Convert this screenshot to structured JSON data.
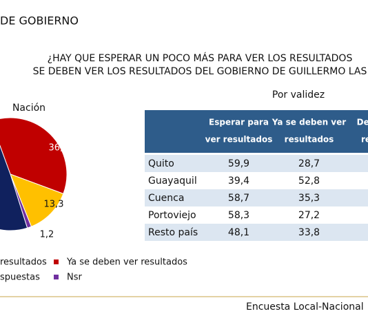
{
  "header": {
    "title": "DE GOBIERNO",
    "question_line1": "¿HAY QUE ESPERAR UN POCO MÁS PARA VER LOS RESULTADOS",
    "question_line2": "SE DEBEN VER LOS RESULTADOS DEL GOBIERNO DE GUILLERMO LAS"
  },
  "chart_data": {
    "type": "pie",
    "title": "Nación",
    "categories": [
      "resultados",
      "Ya se deben ver resultados",
      "spuestas",
      "Nsr"
    ],
    "values": [
      49.3,
      36.2,
      13.3,
      1.2
    ],
    "value_labels": [
      null,
      "36,2",
      "13,3",
      "1,2"
    ],
    "colors": [
      "#10215e",
      "#c00000",
      "#ffc000",
      "#7030a0"
    ]
  },
  "table": {
    "title": "Por validez",
    "header": [
      [
        "Esperar para",
        "ver resultados"
      ],
      [
        "Ya se deben ver",
        "resultados"
      ],
      [
        "Dep",
        "re"
      ]
    ],
    "rows": [
      [
        "Quito",
        "59,9",
        "28,7"
      ],
      [
        "Guayaquil",
        "39,4",
        "52,8"
      ],
      [
        "Cuenca",
        "58,7",
        "35,3"
      ],
      [
        "Portoviejo",
        "58,3",
        "27,2"
      ],
      [
        "Resto país",
        "48,1",
        "33,8"
      ]
    ]
  },
  "footer": "Encuesta Local-Nacional"
}
